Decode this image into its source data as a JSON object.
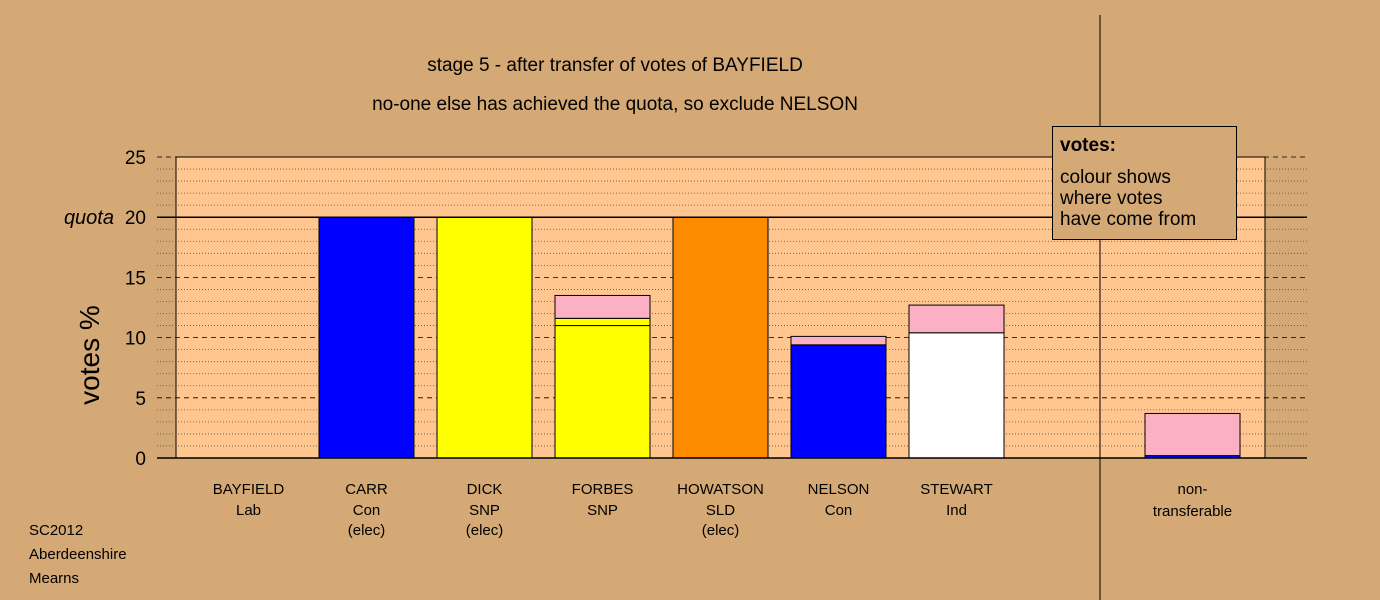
{
  "title_line1": "stage 5 - after transfer of votes of BAYFIELD",
  "title_line2": "no-one else has achieved the quota, so exclude NELSON",
  "footer": [
    "SC2012",
    "Aberdeenshire",
    "Mearns"
  ],
  "legend": {
    "title": "votes:",
    "body": "colour shows\nwhere votes\nhave come from"
  },
  "chart_data": {
    "type": "bar",
    "stacked": true,
    "ylabel": "votes %",
    "ylim": [
      0,
      25
    ],
    "yticks": [
      0,
      5,
      10,
      15,
      20,
      25
    ],
    "quota": 20,
    "quota_label": "quota",
    "grid": true,
    "categories": [
      {
        "name": "BAYFIELD",
        "party": "Lab",
        "status": "",
        "segments": []
      },
      {
        "name": "CARR",
        "party": "Con",
        "status": "(elec)",
        "segments": [
          {
            "value": 20.0,
            "color": "#0000ff"
          }
        ]
      },
      {
        "name": "DICK",
        "party": "SNP",
        "status": "(elec)",
        "segments": [
          {
            "value": 20.0,
            "color": "#ffff00"
          }
        ]
      },
      {
        "name": "FORBES",
        "party": "SNP",
        "status": "",
        "segments": [
          {
            "value": 11.0,
            "color": "#ffff00"
          },
          {
            "value": 0.6,
            "color": "#ffff00"
          },
          {
            "value": 1.9,
            "color": "#fbb0c4"
          }
        ]
      },
      {
        "name": "HOWATSON",
        "party": "SLD",
        "status": "(elec)",
        "segments": [
          {
            "value": 20.0,
            "color": "#ff8c00"
          }
        ]
      },
      {
        "name": "NELSON",
        "party": "Con",
        "status": "",
        "segments": [
          {
            "value": 9.4,
            "color": "#0000ff"
          },
          {
            "value": 0.7,
            "color": "#fbb0c4"
          }
        ]
      },
      {
        "name": "STEWART",
        "party": "Ind",
        "status": "",
        "segments": [
          {
            "value": 10.4,
            "color": "#ffffff"
          },
          {
            "value": 2.3,
            "color": "#fbb0c4"
          }
        ]
      }
    ],
    "nontransferable": {
      "name": "non-",
      "name2": "transferable",
      "segments": [
        {
          "value": 0.2,
          "color": "#0000ff"
        },
        {
          "value": 3.5,
          "color": "#fbb0c4"
        }
      ]
    }
  }
}
